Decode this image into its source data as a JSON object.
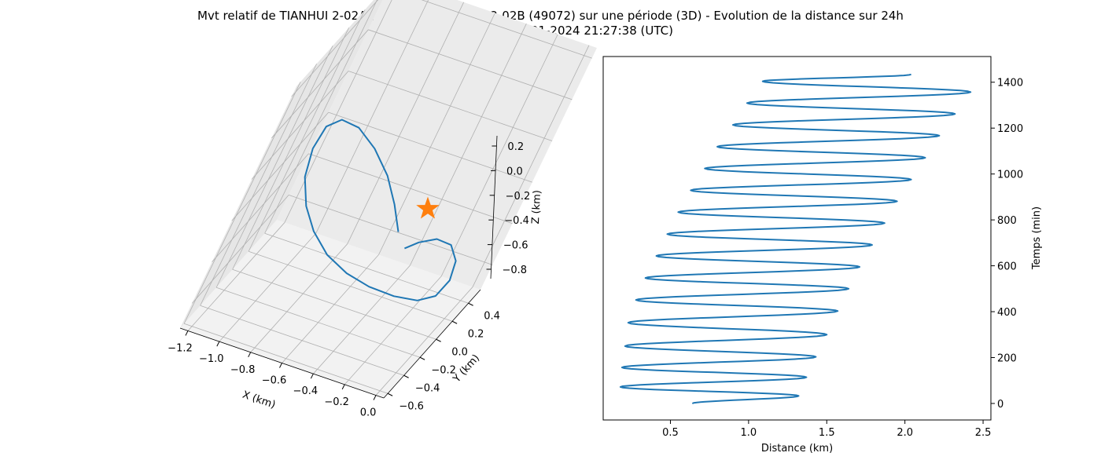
{
  "figure": {
    "title_line1": "Mvt relatif de TIANHUI 2-02A (49071) vs TIANHUI 2-02B (49072) sur une période (3D) - Evolution de la distance sur 24h",
    "title_line2": "Date début = 15-01-2024 21:27:38 (UTC)"
  },
  "colors": {
    "series": "#1f77b4",
    "star": "#ff7f0e",
    "pane": "#f2f2f2",
    "grid": "#b0b0b0"
  },
  "chart_data": [
    {
      "type": "line3d",
      "xlabel": "X (km)",
      "ylabel": "Y (km)",
      "zlabel": "Z (km)",
      "xlim": [
        -1.25,
        0.05
      ],
      "ylim": [
        -0.65,
        0.55
      ],
      "zlim": [
        -0.92,
        0.25
      ],
      "x_ticks": [
        "−1.2",
        "−1.0",
        "−0.8",
        "−0.6",
        "−0.4",
        "−0.2",
        "0.0"
      ],
      "y_ticks": [
        "−0.6",
        "−0.4",
        "−0.2",
        "0.0",
        "0.2",
        "0.4"
      ],
      "z_ticks": [
        "−0.8",
        "−0.6",
        "−0.4",
        "−0.2",
        "0.0",
        "0.2"
      ],
      "grid": true,
      "star_marker": "start point",
      "series": [
        {
          "x": [
            -0.4,
            -0.51,
            -0.64,
            -0.8,
            -0.96,
            -1.09,
            -1.17,
            -1.19,
            -1.15,
            -1.05,
            -0.92,
            -0.76,
            -0.58,
            -0.4,
            -0.22,
            -0.07,
            0.02,
            0.05,
            0.02,
            -0.06,
            -0.16,
            -0.25,
            -0.31
          ],
          "y": [
            -0.2,
            -0.12,
            -0.04,
            0.05,
            0.14,
            0.22,
            0.28,
            0.3,
            0.26,
            0.18,
            0.07,
            -0.05,
            -0.17,
            -0.28,
            -0.37,
            -0.42,
            -0.43,
            -0.4,
            -0.34,
            -0.28,
            -0.25,
            -0.25,
            -0.26
          ],
          "z": [
            -0.43,
            -0.36,
            -0.29,
            -0.24,
            -0.22,
            -0.25,
            -0.33,
            -0.45,
            -0.56,
            -0.64,
            -0.68,
            -0.7,
            -0.69,
            -0.66,
            -0.62,
            -0.58,
            -0.53,
            -0.46,
            -0.4,
            -0.37,
            -0.38,
            -0.42,
            -0.46
          ]
        }
      ],
      "star": {
        "x": 0.05,
        "y": 0.35,
        "z": -0.28
      }
    },
    {
      "type": "line",
      "xlabel": "Distance (km)",
      "ylabel": "Temps (min)",
      "xlim": [
        0.07,
        2.55
      ],
      "ylim": [
        -72,
        1512
      ],
      "x_ticks": [
        0.5,
        1.0,
        1.5,
        2.0,
        2.5
      ],
      "y_ticks": [
        0,
        200,
        400,
        600,
        800,
        1000,
        1200,
        1400
      ],
      "y_axis_side": "right",
      "grid": false,
      "series": [
        {
          "x": [
            0.64,
            1.32,
            0.18,
            1.37,
            0.19,
            1.43,
            0.21,
            1.5,
            0.23,
            1.57,
            0.28,
            1.64,
            0.34,
            1.71,
            0.41,
            1.79,
            0.48,
            1.87,
            0.55,
            1.95,
            0.63,
            2.04,
            0.72,
            2.13,
            0.8,
            2.22,
            0.9,
            2.32,
            0.99,
            2.42,
            1.09,
            2.04
          ],
          "y": [
            0,
            33,
            72,
            114,
            157,
            203,
            250,
            300,
            352,
            403,
            451,
            500,
            547,
            595,
            643,
            691,
            738,
            786,
            834,
            881,
            929,
            976,
            1024,
            1071,
            1119,
            1167,
            1214,
            1262,
            1309,
            1357,
            1404,
            1434
          ]
        }
      ]
    }
  ]
}
